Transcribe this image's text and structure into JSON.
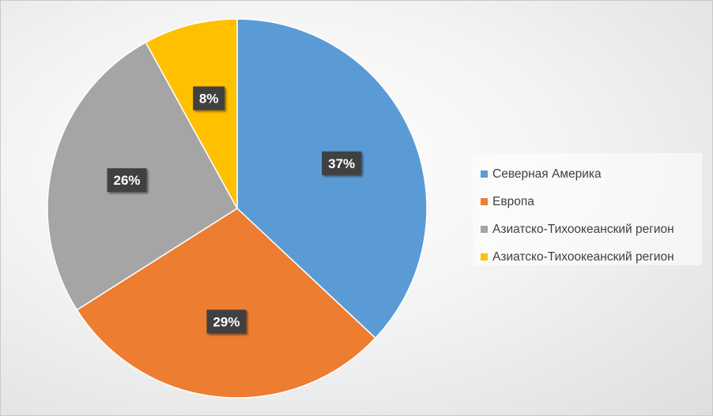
{
  "chart_data": {
    "type": "pie",
    "categories": [
      "Северная Америка",
      "Европа",
      "Азиатско-Тихоокеанский регион",
      "Азиатско-Тихоокеанский регион"
    ],
    "values": [
      37,
      29,
      26,
      8
    ],
    "data_labels": [
      "37%",
      "29%",
      "26%",
      "8%"
    ],
    "colors": [
      "#5b9bd5",
      "#ed7d31",
      "#a5a5a5",
      "#ffc000"
    ],
    "legend_position": "right",
    "start_angle": "top",
    "direction": "clockwise"
  }
}
